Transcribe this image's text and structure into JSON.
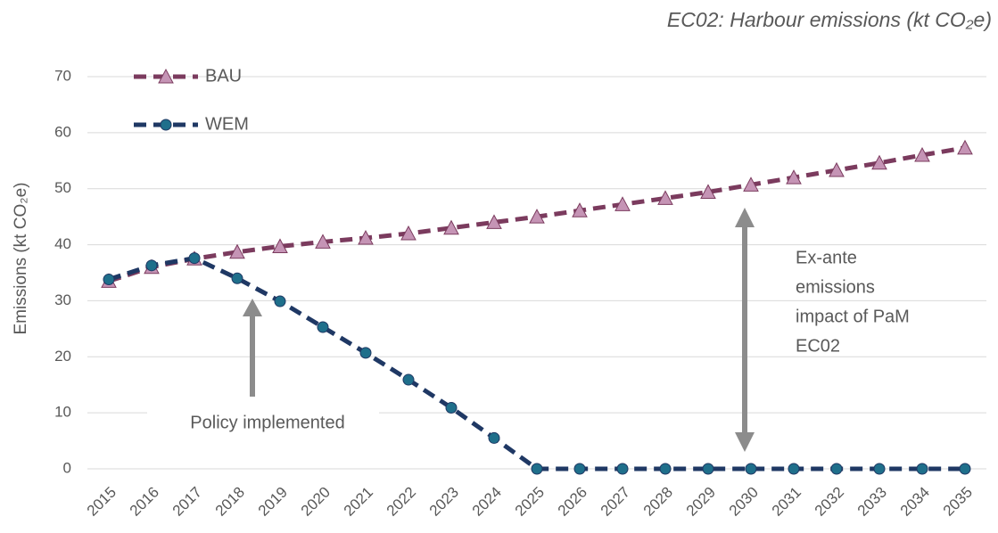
{
  "chart_data": {
    "type": "line",
    "title": "EC02: Harbour emissions (kt CO₂e)",
    "y_label": "Emissions (kt CO₂e)",
    "categories": [
      "2015",
      "2016",
      "2017",
      "2018",
      "2019",
      "2020",
      "2021",
      "2022",
      "2023",
      "2024",
      "2025",
      "2026",
      "2027",
      "2028",
      "2029",
      "2030",
      "2031",
      "2032",
      "2033",
      "2034",
      "2035"
    ],
    "series": [
      {
        "name": "BAU",
        "color": "#7b3b5e",
        "marker_color": "#c594b5",
        "marker": "triangle",
        "values": [
          33.5,
          36,
          37.5,
          38.7,
          39.7,
          40.5,
          41.2,
          42,
          43,
          44,
          45,
          46.1,
          47.2,
          48.3,
          49.4,
          50.7,
          52,
          53.3,
          54.6,
          56,
          57.3
        ]
      },
      {
        "name": "WEM",
        "color": "#1f3864",
        "marker_color": "#1f6f8b",
        "marker": "circle",
        "values": [
          33.8,
          36.3,
          37.6,
          34,
          29.9,
          25.3,
          20.7,
          15.9,
          10.9,
          5.5,
          0,
          0,
          0,
          0,
          0,
          0,
          0,
          0,
          0,
          0,
          0
        ]
      }
    ],
    "ylim": [
      0,
      70
    ],
    "yticks": [
      0,
      10,
      20,
      30,
      40,
      50,
      60,
      70
    ],
    "grid": true,
    "legend": "upper left",
    "annotations": {
      "policy": "Policy implemented",
      "impact": [
        "Ex-ante",
        "emissions",
        "impact of PaM",
        "EC02"
      ]
    }
  }
}
